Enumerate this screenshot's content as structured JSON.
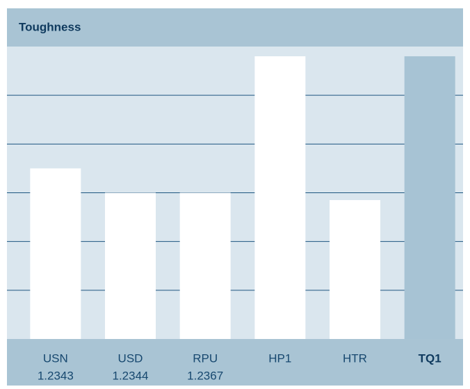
{
  "chart_data": {
    "type": "bar",
    "title": "Toughness",
    "categories": [
      "USN",
      "USD",
      "RPU",
      "HP1",
      "HTR",
      "TQ1"
    ],
    "sublabels": [
      "1.2343",
      "1.2344",
      "1.2367",
      null,
      null,
      null
    ],
    "values": [
      3.5,
      3.0,
      3.0,
      5.8,
      2.85,
      5.8
    ],
    "color": "#ffffff",
    "highlight": 5,
    "highlight_color": "#a7c3d4",
    "ylim": [
      0,
      6
    ],
    "yticks": [
      1,
      2,
      3,
      4,
      5
    ],
    "grid": true
  }
}
